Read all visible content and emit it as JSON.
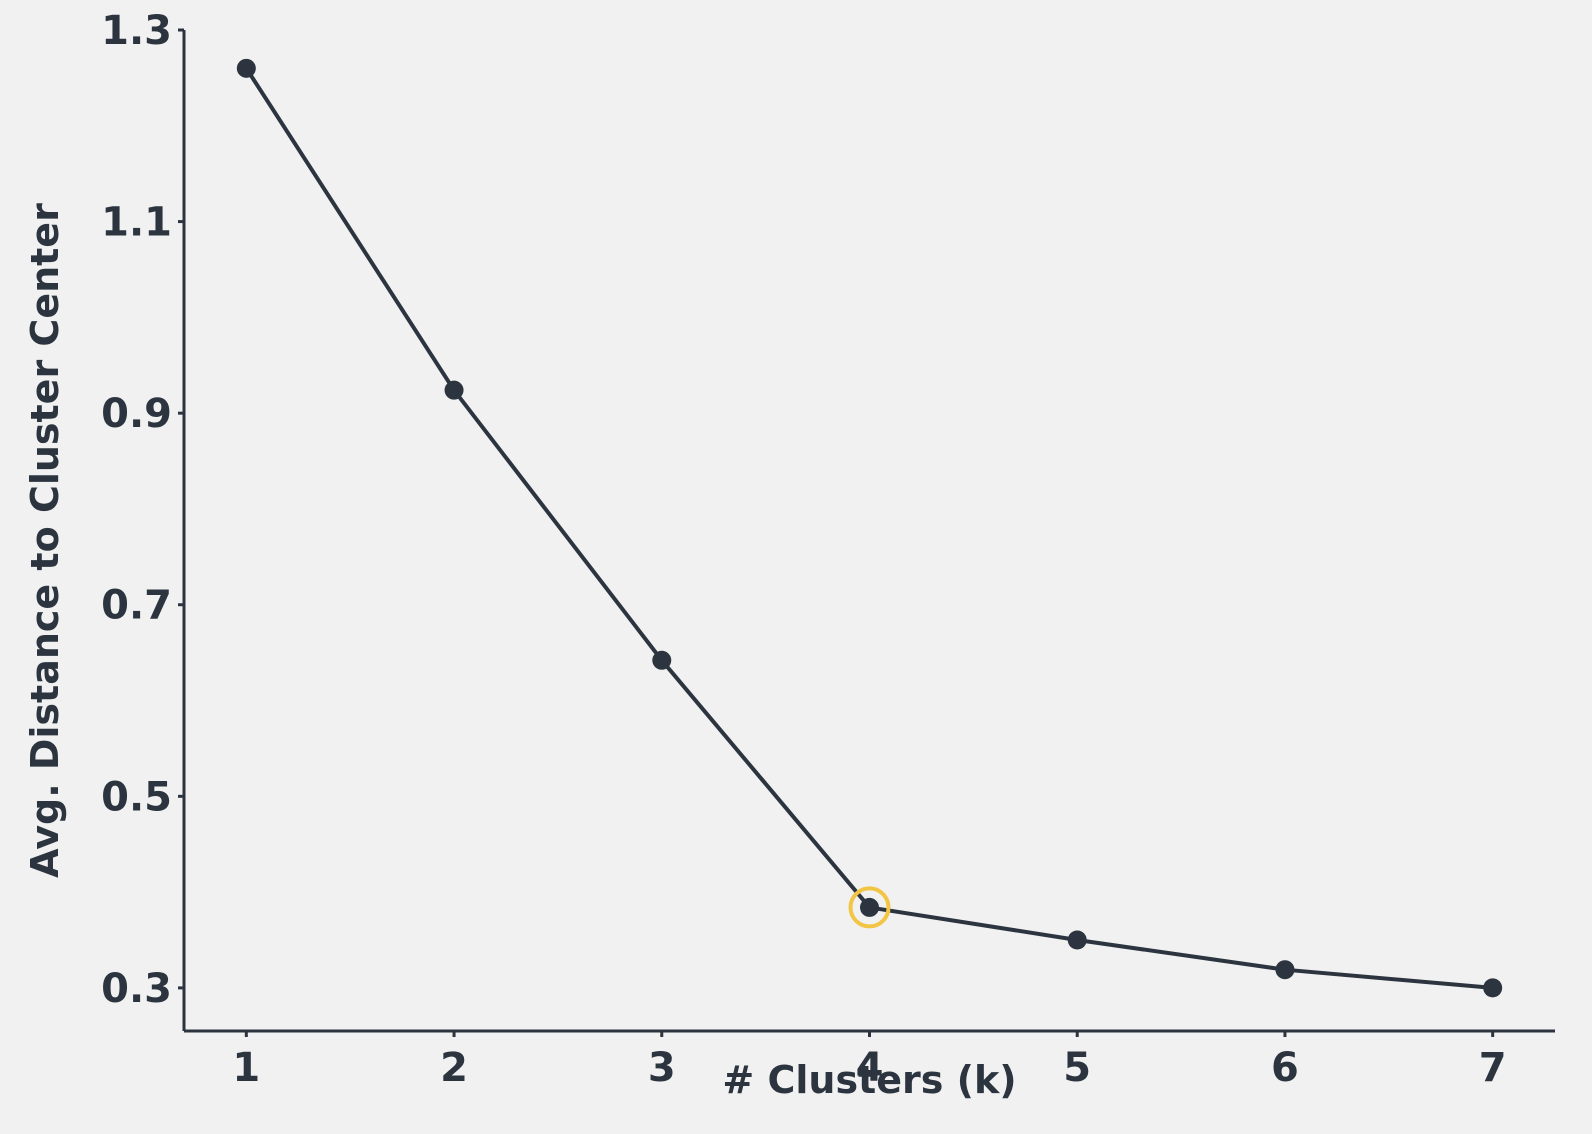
{
  "chart_data": {
    "type": "line",
    "title": "",
    "xlabel": "# Clusters (k)",
    "ylabel": "Avg. Distance to Cluster Center",
    "x": [
      1,
      2,
      3,
      4,
      5,
      6,
      7
    ],
    "series": [
      {
        "values": [
          1.26,
          0.924,
          0.642,
          0.384,
          0.35,
          0.319,
          0.3
        ]
      }
    ],
    "xticks": [
      "1",
      "2",
      "3",
      "4",
      "5",
      "6",
      "7"
    ],
    "yticks": [
      "0.3",
      "0.5",
      "0.7",
      "0.9",
      "1.1",
      "1.3"
    ],
    "ylim": [
      0.255,
      1.3
    ],
    "xlim": [
      0.7,
      7.3
    ],
    "highlight_x": 4,
    "grid": false,
    "legend": "none",
    "colors": {
      "line": "#2c353f",
      "text": "#2c353f",
      "highlight": "#f2c544",
      "background": "#f1f1f1"
    }
  }
}
